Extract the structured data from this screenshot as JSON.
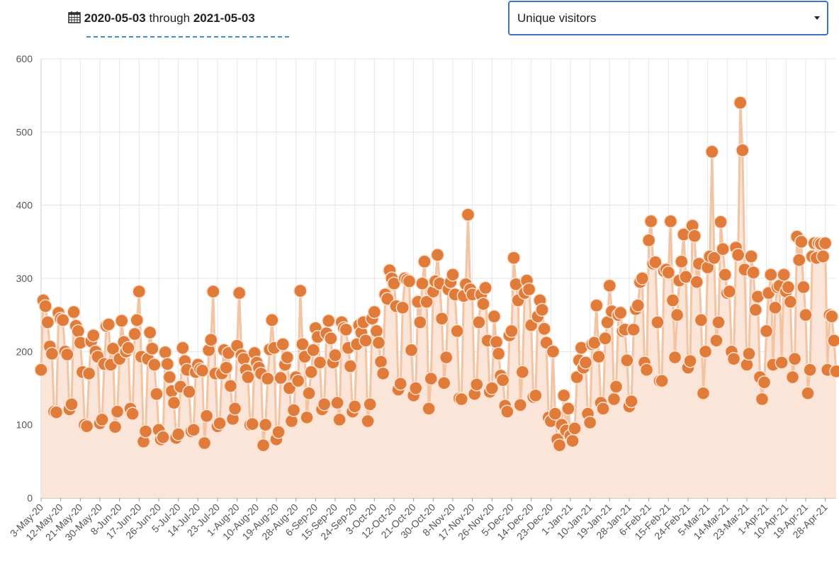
{
  "header": {
    "start_date": "2020-05-03",
    "through": "through",
    "end_date": "2021-05-03",
    "metric": "Unique visitors"
  },
  "chart_data": {
    "type": "line",
    "categories": [
      "3-May-20",
      null,
      null,
      null,
      null,
      null,
      null,
      null,
      null,
      "12-May-20",
      null,
      null,
      null,
      null,
      null,
      null,
      null,
      null,
      "21-May-20",
      null,
      null,
      null,
      null,
      null,
      null,
      null,
      null,
      "30-May-20",
      null,
      null,
      null,
      null,
      null,
      null,
      null,
      null,
      "8-Jun-20",
      null,
      null,
      null,
      null,
      null,
      null,
      null,
      null,
      "17-Jun-20",
      null,
      null,
      null,
      null,
      null,
      null,
      null,
      null,
      "26-Jun-20",
      null,
      null,
      null,
      null,
      null,
      null,
      null,
      null,
      "5-Jul-20",
      null,
      null,
      null,
      null,
      null,
      null,
      null,
      null,
      "14-Jul-20",
      null,
      null,
      null,
      null,
      null,
      null,
      null,
      null,
      "23-Jul-20",
      null,
      null,
      null,
      null,
      null,
      null,
      null,
      null,
      "1-Aug-20",
      null,
      null,
      null,
      null,
      null,
      null,
      null,
      null,
      "10-Aug-20",
      null,
      null,
      null,
      null,
      null,
      null,
      null,
      null,
      "19-Aug-20",
      null,
      null,
      null,
      null,
      null,
      null,
      null,
      null,
      "28-Aug-20",
      null,
      null,
      null,
      null,
      null,
      null,
      null,
      null,
      "6-Sep-20",
      null,
      null,
      null,
      null,
      null,
      null,
      null,
      null,
      "15-Sep-20",
      null,
      null,
      null,
      null,
      null,
      null,
      null,
      null,
      "24-Sep-20",
      null,
      null,
      null,
      null,
      null,
      null,
      null,
      null,
      "3-Oct-20",
      null,
      null,
      null,
      null,
      null,
      null,
      null,
      null,
      "12-Oct-20",
      null,
      null,
      null,
      null,
      null,
      null,
      null,
      null,
      "21-Oct-20",
      null,
      null,
      null,
      null,
      null,
      null,
      null,
      null,
      "30-Oct-20",
      null,
      null,
      null,
      null,
      null,
      null,
      null,
      null,
      "8-Nov-20",
      null,
      null,
      null,
      null,
      null,
      null,
      null,
      null,
      "17-Nov-20",
      null,
      null,
      null,
      null,
      null,
      null,
      null,
      null,
      "26-Nov-20",
      null,
      null,
      null,
      null,
      null,
      null,
      null,
      null,
      "5-Dec-20",
      null,
      null,
      null,
      null,
      null,
      null,
      null,
      null,
      "14-Dec-20",
      null,
      null,
      null,
      null,
      null,
      null,
      null,
      null,
      "23-Dec-20",
      null,
      null,
      null,
      null,
      null,
      null,
      null,
      null,
      "1-Jan-21",
      null,
      null,
      null,
      null,
      null,
      null,
      null,
      null,
      "10-Jan-21",
      null,
      null,
      null,
      null,
      null,
      null,
      null,
      null,
      "19-Jan-21",
      null,
      null,
      null,
      null,
      null,
      null,
      null,
      null,
      "28-Jan-21",
      null,
      null,
      null,
      null,
      null,
      null,
      null,
      null,
      "6-Feb-21",
      null,
      null,
      null,
      null,
      null,
      null,
      null,
      null,
      "15-Feb-21",
      null,
      null,
      null,
      null,
      null,
      null,
      null,
      null,
      "24-Feb-21",
      null,
      null,
      null,
      null,
      null,
      null,
      null,
      null,
      "5-Mar-21",
      null,
      null,
      null,
      null,
      null,
      null,
      null,
      null,
      "14-Mar-21",
      null,
      null,
      null,
      null,
      null,
      null,
      null,
      null,
      "23-Mar-21",
      null,
      null,
      null,
      null,
      null,
      null,
      null,
      null,
      "1-Apr-21",
      null,
      null,
      null,
      null,
      null,
      null,
      null,
      null,
      "10-Apr-21",
      null,
      null,
      null,
      null,
      null,
      null,
      null,
      null,
      "19-Apr-21",
      null,
      null,
      null,
      null,
      null,
      null,
      null,
      null,
      "28-Apr-21",
      null,
      null,
      null,
      null,
      null
    ],
    "values": [
      175,
      270,
      262,
      240,
      207,
      197,
      118,
      117,
      253,
      245,
      243,
      200,
      196,
      121,
      128,
      254,
      235,
      228,
      212,
      172,
      100,
      98,
      170,
      214,
      222,
      200,
      193,
      102,
      107,
      183,
      235,
      237,
      182,
      204,
      97,
      118,
      190,
      242,
      213,
      200,
      205,
      122,
      115,
      224,
      243,
      282,
      193,
      77,
      91,
      190,
      226,
      204,
      182,
      142,
      93,
      80,
      83,
      199,
      183,
      165,
      146,
      130,
      82,
      87,
      152,
      205,
      187,
      175,
      145,
      91,
      93,
      172,
      182,
      176,
      174,
      75,
      112,
      202,
      216,
      282,
      170,
      98,
      102,
      170,
      202,
      178,
      198,
      153,
      108,
      122,
      208,
      280,
      195,
      190,
      175,
      165,
      100,
      101,
      198,
      185,
      178,
      170,
      72,
      100,
      163,
      203,
      243,
      205,
      80,
      90,
      164,
      210,
      182,
      192,
      150,
      105,
      120,
      165,
      160,
      283,
      210,
      193,
      110,
      143,
      172,
      202,
      232,
      220,
      185,
      121,
      128,
      225,
      242,
      218,
      185,
      195,
      130,
      107,
      240,
      232,
      230,
      205,
      180,
      118,
      125,
      210,
      236,
      226,
      240,
      215,
      105,
      128,
      245,
      254,
      228,
      212,
      186,
      170,
      278,
      272,
      311,
      300,
      293,
      262,
      148,
      156,
      260,
      300,
      298,
      296,
      202,
      140,
      150,
      268,
      240,
      293,
      323,
      268,
      122,
      163,
      282,
      296,
      332,
      293,
      245,
      157,
      192,
      285,
      295,
      305,
      278,
      228,
      136,
      135,
      276,
      292,
      387,
      285,
      278,
      142,
      155,
      240,
      278,
      265,
      287,
      215,
      145,
      150,
      248,
      213,
      197,
      167,
      161,
      126,
      118,
      222,
      228,
      328,
      292,
      270,
      127,
      172,
      280,
      297,
      285,
      236,
      138,
      140,
      248,
      270,
      257,
      231,
      212,
      110,
      105,
      200,
      115,
      80,
      72,
      100,
      140,
      92,
      122,
      85,
      78,
      95,
      165,
      188,
      205,
      178,
      185,
      115,
      103,
      210,
      212,
      263,
      193,
      130,
      122,
      218,
      240,
      290,
      255,
      135,
      152,
      250,
      253,
      228,
      230,
      188,
      125,
      132,
      230,
      258,
      263,
      295,
      300,
      185,
      175,
      352,
      378,
      320,
      322,
      240,
      160,
      160,
      310,
      312,
      308,
      378,
      270,
      192,
      250,
      297,
      323,
      360,
      302,
      178,
      187,
      372,
      358,
      295,
      320,
      243,
      143,
      200,
      315,
      330,
      473,
      328,
      215,
      240,
      377,
      340,
      305,
      280,
      282,
      200,
      190,
      342,
      332,
      540,
      475,
      312,
      182,
      197,
      330,
      308,
      257,
      275,
      165,
      135,
      158,
      228,
      280,
      305,
      182,
      260,
      288,
      290,
      185,
      305,
      282,
      288,
      268,
      165,
      190,
      357,
      325,
      350,
      288,
      250,
      143,
      175,
      330,
      348,
      328,
      348,
      347,
      330,
      348,
      175,
      250,
      248,
      215,
      173
    ],
    "color": "#e07b39",
    "ylim": [
      0,
      600
    ],
    "yticks": [
      0,
      100,
      200,
      300,
      400,
      500,
      600
    ],
    "grid": true
  }
}
